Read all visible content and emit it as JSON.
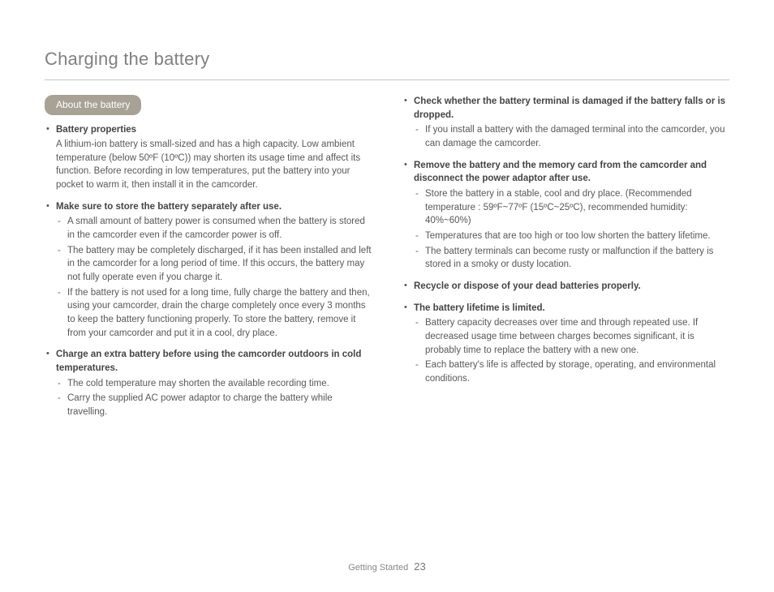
{
  "page": {
    "title": "Charging the battery",
    "footer_section": "Getting Started",
    "page_number": "23"
  },
  "pill": "About the battery",
  "left": [
    {
      "head": "Battery properties",
      "body": "A lithium-ion battery is small-sized and has a high capacity. Low ambient temperature (below 50ºF (10ºC)) may shorten its usage time and affect its function. Before recording in low temperatures, put the battery into your pocket to warm it, then install it in the camcorder."
    },
    {
      "head": "Make sure to store the battery separately after use.",
      "sub": [
        "A small amount of battery power is consumed when the battery is stored in the camcorder even if the camcorder power is off.",
        "The battery may be completely discharged, if it has been installed and left in the camcorder for a long period of time. If this occurs, the battery may not fully operate even if you charge it.",
        "If the battery is not used for a long time, fully charge the battery and then, using your camcorder, drain the charge completely once every 3 months to keep the battery functioning properly. To store the battery, remove it from your camcorder and put it in a cool, dry place."
      ]
    },
    {
      "head": "Charge an extra battery before using the camcorder outdoors in cold temperatures.",
      "sub": [
        "The cold temperature may shorten the available recording time.",
        "Carry the supplied AC power adaptor to charge the battery while travelling."
      ]
    }
  ],
  "right": [
    {
      "head": "Check whether the battery terminal is damaged if the battery falls or is dropped.",
      "sub": [
        "If you install a battery with the damaged terminal into the camcorder, you can damage the camcorder."
      ]
    },
    {
      "head": "Remove the battery and the memory card from the camcorder and disconnect the power adaptor after use.",
      "sub": [
        "Store the battery in a stable, cool and dry place. (Recommended temperature : 59ºF~77ºF (15ºC~25ºC), recommended humidity: 40%~60%)",
        "Temperatures that are too high or too low shorten the battery lifetime.",
        "The battery terminals can become rusty or malfunction if the battery is stored in a smoky or dusty location."
      ]
    },
    {
      "head": "Recycle or dispose of your dead batteries properly."
    },
    {
      "head": "The battery lifetime is limited.",
      "sub": [
        "Battery capacity decreases over time and through repeated use. If decreased usage time between charges becomes significant, it is probably time to replace the battery with a new one.",
        "Each battery's life is affected by storage, operating, and environmental conditions."
      ]
    }
  ]
}
